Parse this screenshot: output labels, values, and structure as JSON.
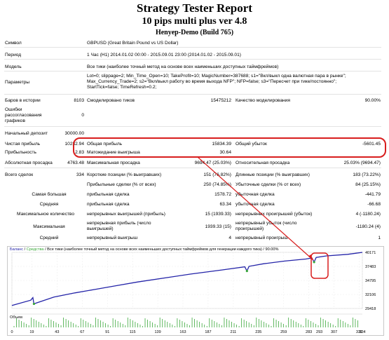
{
  "header": {
    "title": "Strategy Tester Report",
    "ea_name": "10 pips multi plus ver 4.8",
    "account": "Henyep-Demo (Build 765)"
  },
  "params": [
    {
      "label": "Символ",
      "value": "GBPUSD (Great Britain Pound vs US Dollar)"
    },
    {
      "label": "Период",
      "value": "1 Час (H1) 2014.01.02 00:00 - 2015.09.01 23:00 (2014.01.02 - 2015.09.01)"
    },
    {
      "label": "Модель",
      "value": "Все тики (наиболее точный метод на основе всех наименьших доступных таймфреймов)"
    },
    {
      "label": "Параметры",
      "lines": [
        "Lot=0; slippage=2; Min_Time_Open=10; TakeProfit=10; MagicNumber=387688; s1=\"Вкл/выкл одна валютная пара в рынке\";",
        "Max_Currency_Trade=2; s2=\"Вкл/выкл работу во время выхода NFP\"; NFP=false; s3=\"Пересчет при тике/постоянно\";",
        "StartTick=false; TimeRefresh=0.2;"
      ]
    }
  ],
  "bars": {
    "label": "Баров в истории",
    "value": "8103",
    "ticks_label": "Смоделировано тиков",
    "ticks_value": "15475212",
    "quality_label": "Качество моделирования",
    "quality_value": "90.00%"
  },
  "errors": {
    "label_lines": [
      "Ошибки",
      "рассогласования",
      "графиков"
    ],
    "value": "0"
  },
  "deposit": {
    "label": "Начальный депозит",
    "value": "30000.00"
  },
  "profit": {
    "net_label": "Чистая прибыль",
    "net_value": "10232.94",
    "gross_label": "Общая прибыль",
    "gross_value": "15834.39",
    "loss_label": "Общий убыток",
    "loss_value": "-5601.45",
    "factor_label": "Прибыльность",
    "factor_value": "2.83",
    "expect_label": "Матожидание выигрыша",
    "expect_value": "30.64"
  },
  "drawdown": {
    "abs_label": "Абсолютная просадка",
    "abs_value": "4763.48",
    "max_label": "Максимальная просадка",
    "max_value": "9694.47 (25.03%)",
    "rel_label": "Относительная просадка",
    "rel_value": "25.03% (9694.47)"
  },
  "trades": {
    "total_label": "Всего сделок",
    "total_value": "334",
    "short_label": "Короткие позиции (% выигравших)",
    "short_value": "151 (76.82%)",
    "long_label": "Длинные позиции (% выигравших)",
    "long_value": "183 (73.22%)",
    "win_label": "Прибыльные сделки (% от всех)",
    "win_value": "250 (74.85%)",
    "lose_label": "Убыточные сделки (% от всех)",
    "lose_value": "84 (25.15%)"
  },
  "largest": {
    "label": "Самая большая",
    "win_label": "прибыльная сделка",
    "win_value": "1578.72",
    "lose_label": "убыточная сделка",
    "lose_value": "-441.79"
  },
  "average": {
    "label": "Средняя",
    "win_label": "прибыльная сделка",
    "win_value": "63.34",
    "lose_label": "убыточная сделка",
    "lose_value": "-66.68"
  },
  "max_count": {
    "label": "Максимальное количество",
    "win_label": "непрерывных выигрышей (прибыль)",
    "win_value": "15 (1939.33)",
    "lose_label": "непрерывных проигрышей (убыток)",
    "lose_value": "4 (-1180.24)"
  },
  "max_sum": {
    "label": "Максимальная",
    "win_label_lines": [
      "непрерывная прибыль (число",
      "выигрышей)"
    ],
    "win_value": "1939.33 (15)",
    "lose_label_lines": [
      "непрерывный убыток (число",
      "проигрышей)"
    ],
    "lose_value": "-1180.24 (4)"
  },
  "avg_cons": {
    "label": "Средний",
    "win_label": "непрерывный выигрыш",
    "win_value": "4",
    "lose_label": "непрерывный проигрыш",
    "lose_value": "1"
  },
  "chart": {
    "title_balance": "Баланс",
    "title_sep": " / ",
    "title_equity": "Средства",
    "title_rest": " / Все тики (наиболее точный метод на основе всех наименьших доступных таймфреймов для генерации каждого тика) / 90.00%",
    "volume_label": "Объем",
    "balance_color": "#2323a8",
    "equity_color": "#3aa83a",
    "arrow_color": "#d81d1d"
  },
  "chart_data": {
    "type": "line",
    "y_ticks": [
      "40171",
      "37483",
      "34795",
      "32106",
      "29418"
    ],
    "ylim": [
      29418,
      40171
    ],
    "x_ticks": [
      "0",
      "19",
      "43",
      "67",
      "91",
      "115",
      "139",
      "163",
      "187",
      "211",
      "235",
      "259",
      "283",
      "293",
      "307",
      "331",
      "334"
    ],
    "xlim": [
      0,
      334
    ],
    "series": [
      {
        "name": "Баланс",
        "x": [
          0,
          18,
          20,
          21,
          40,
          60,
          80,
          100,
          120,
          150,
          170,
          200,
          222,
          224,
          226,
          240,
          260,
          280,
          286,
          288,
          290,
          300,
          320,
          334
        ],
        "values": [
          30000,
          31000,
          31500,
          30300,
          31600,
          32400,
          33100,
          33800,
          34500,
          35400,
          36000,
          36800,
          37400,
          36600,
          37500,
          38000,
          38500,
          38900,
          39100,
          38300,
          39200,
          39500,
          39800,
          40171
        ]
      }
    ],
    "legend": "top-left"
  }
}
